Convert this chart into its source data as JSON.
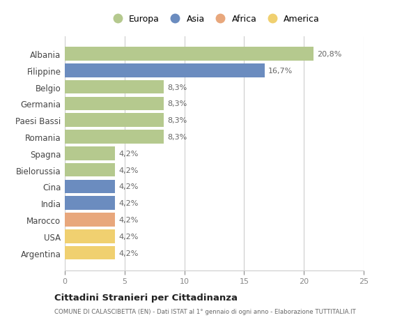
{
  "categories": [
    "Albania",
    "Filippine",
    "Belgio",
    "Germania",
    "Paesi Bassi",
    "Romania",
    "Spagna",
    "Bielorussia",
    "Cina",
    "India",
    "Marocco",
    "USA",
    "Argentina"
  ],
  "values": [
    20.8,
    16.7,
    8.3,
    8.3,
    8.3,
    8.3,
    4.2,
    4.2,
    4.2,
    4.2,
    4.2,
    4.2,
    4.2
  ],
  "labels": [
    "20,8%",
    "16,7%",
    "8,3%",
    "8,3%",
    "8,3%",
    "8,3%",
    "4,2%",
    "4,2%",
    "4,2%",
    "4,2%",
    "4,2%",
    "4,2%",
    "4,2%"
  ],
  "continent": [
    "Europa",
    "Asia",
    "Europa",
    "Europa",
    "Europa",
    "Europa",
    "Europa",
    "Europa",
    "Asia",
    "Asia",
    "Africa",
    "America",
    "America"
  ],
  "colors": {
    "Europa": "#b5c98e",
    "Asia": "#6b8cbf",
    "Africa": "#e8a77c",
    "America": "#f0d070"
  },
  "legend_order": [
    "Europa",
    "Asia",
    "Africa",
    "America"
  ],
  "xlim": [
    0,
    25
  ],
  "xticks": [
    0,
    5,
    10,
    15,
    20,
    25
  ],
  "title": "Cittadini Stranieri per Cittadinanza",
  "subtitle": "COMUNE DI CALASCIBETTA (EN) - Dati ISTAT al 1° gennaio di ogni anno - Elaborazione TUTTITALIA.IT",
  "background_color": "#ffffff",
  "bar_height": 0.82,
  "grid_color": "#cccccc"
}
